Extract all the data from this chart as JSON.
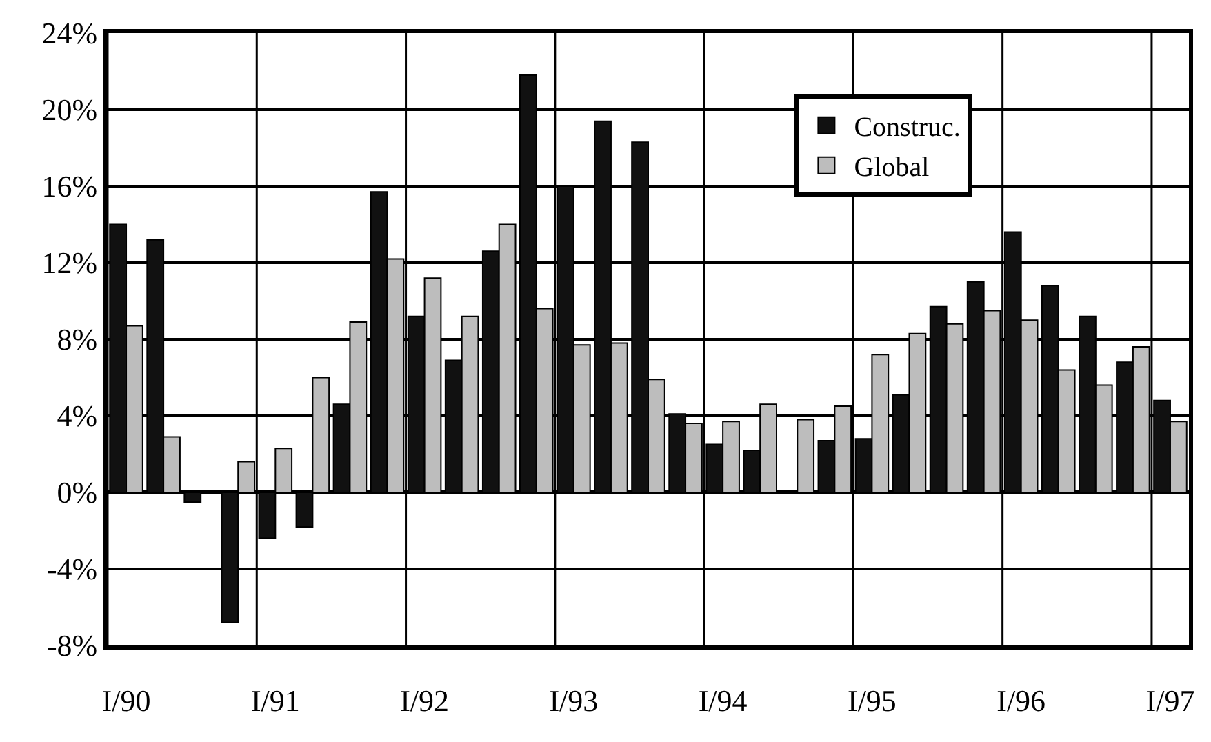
{
  "chart_data": {
    "type": "bar",
    "categories": [
      "I/90",
      null,
      null,
      null,
      "I/91",
      null,
      null,
      null,
      "I/92",
      null,
      null,
      null,
      "I/93",
      null,
      null,
      null,
      "I/94",
      null,
      null,
      null,
      "I/95",
      null,
      null,
      null,
      "I/96",
      null,
      null,
      null,
      "I/97"
    ],
    "series": [
      {
        "name": "Construc.",
        "color": "#111111",
        "values": [
          14.0,
          13.2,
          -0.5,
          -6.8,
          -2.4,
          -1.8,
          4.6,
          15.7,
          9.2,
          6.9,
          12.6,
          21.8,
          16.0,
          19.4,
          18.3,
          4.1,
          2.5,
          2.2,
          null,
          2.7,
          2.8,
          5.1,
          9.7,
          11.0,
          13.6,
          10.8,
          9.2,
          6.8,
          4.8
        ]
      },
      {
        "name": "Global",
        "color": "#bdbdbd",
        "values": [
          8.7,
          2.9,
          null,
          1.6,
          2.3,
          6.0,
          8.9,
          12.2,
          11.2,
          9.2,
          14.0,
          9.6,
          7.7,
          7.8,
          5.9,
          3.6,
          3.7,
          4.6,
          3.8,
          4.5,
          7.2,
          8.3,
          8.8,
          9.5,
          9.0,
          6.4,
          5.6,
          7.6,
          3.7
        ]
      }
    ],
    "ylim": [
      -8,
      24
    ],
    "yticks": [
      {
        "value": -8,
        "label": "-8%"
      },
      {
        "value": -4,
        "label": "-4%"
      },
      {
        "value": 0,
        "label": "0%"
      },
      {
        "value": 4,
        "label": "4%"
      },
      {
        "value": 8,
        "label": "8%"
      },
      {
        "value": 12,
        "label": "12%"
      },
      {
        "value": 16,
        "label": "16%"
      },
      {
        "value": 20,
        "label": "20%"
      },
      {
        "value": 24,
        "label": "24%"
      }
    ],
    "grid": true,
    "legend": "top right"
  }
}
